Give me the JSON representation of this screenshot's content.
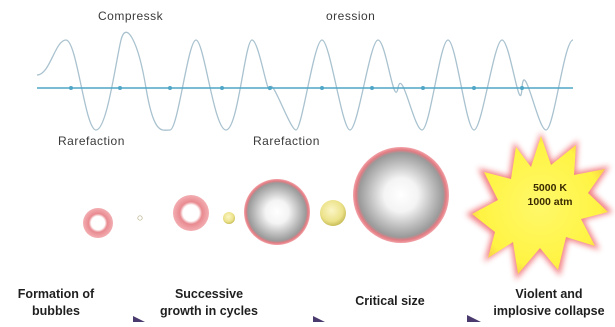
{
  "wave": {
    "compression_label_left": "Compressk",
    "compression_label_right": "oression",
    "rarefaction_label_left": "Rarefaction",
    "rarefaction_label_right": "Rarefaction"
  },
  "burst": {
    "temperature": "5000 K",
    "pressure": "1000 atm"
  },
  "steps": [
    {
      "line1": "Formation of",
      "line2": "bubbles"
    },
    {
      "line1": "Successive",
      "line2": "growth in cycles"
    },
    {
      "line1": "Critical size",
      "line2": ""
    },
    {
      "line1": "Violent and",
      "line2": "implosive collapse"
    }
  ],
  "colors": {
    "wave_line": "#a9c2cf",
    "axis_line": "#4fa6c6",
    "bubble_ring": "#e06b73",
    "arrow": "#4a3a6e",
    "burst_fill": "#fff44a",
    "burst_glow": "#f06a70"
  }
}
